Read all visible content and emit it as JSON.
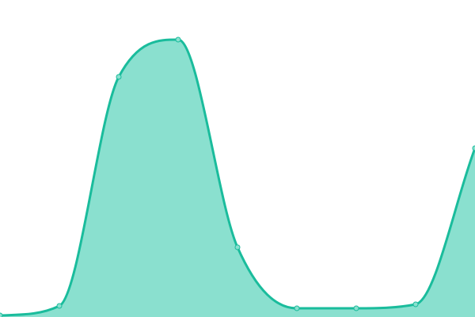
{
  "chart_data": {
    "type": "area",
    "title": "",
    "xlabel": "",
    "ylabel": "",
    "x": [
      0,
      1,
      2,
      3,
      4,
      5,
      6,
      7,
      8
    ],
    "series": [
      {
        "values": [
          2,
          14,
          303,
          350,
          88,
          11,
          11,
          16,
          213
        ]
      }
    ],
    "ylim": [
      0,
      400
    ],
    "grid": false,
    "legend": "none",
    "colors": {
      "line": "#1abc9c",
      "fill": "#8ae0cf",
      "marker": "#8ae0cf"
    }
  }
}
